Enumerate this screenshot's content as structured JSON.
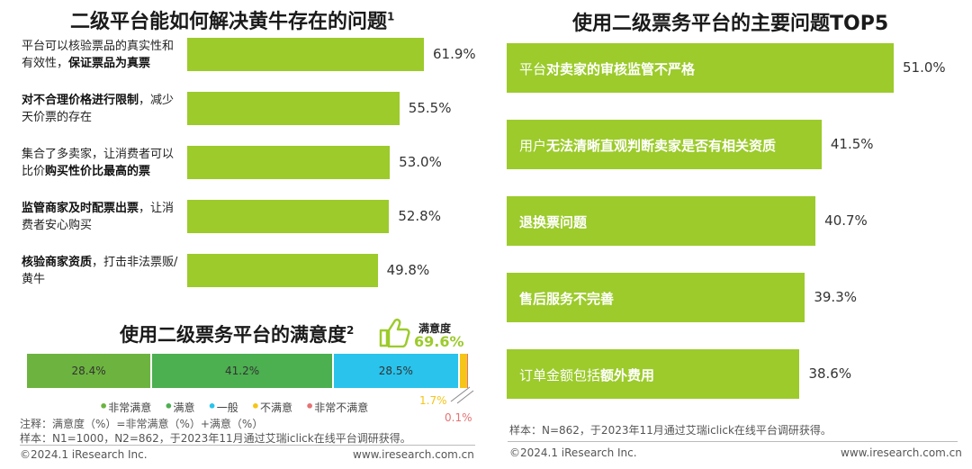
{
  "left_chart": {
    "title": "二级平台能如何解决黄牛存在的问题",
    "title_sup": "1",
    "items": [
      {
        "parts": [
          {
            "t": "平台可以核验票品的真实性和有效性，",
            "b": false
          },
          {
            "t": "保证票品为真票",
            "b": true
          }
        ],
        "value": 61.9,
        "label": "61.9%"
      },
      {
        "parts": [
          {
            "t": "对不合理价格进行限制",
            "b": true
          },
          {
            "t": "，减少天价票的存在",
            "b": false
          }
        ],
        "value": 55.5,
        "label": "55.5%"
      },
      {
        "parts": [
          {
            "t": "集合了多卖家，让消费者可以比价",
            "b": false
          },
          {
            "t": "购买性价比最高的票",
            "b": true
          }
        ],
        "value": 53.0,
        "label": "53.0%"
      },
      {
        "parts": [
          {
            "t": "监管商家及时配票出票",
            "b": true
          },
          {
            "t": "，让消费者安心购买",
            "b": false
          }
        ],
        "value": 52.8,
        "label": "52.8%"
      },
      {
        "parts": [
          {
            "t": "核验商家资质",
            "b": true
          },
          {
            "t": "，打击非法票贩/黄牛",
            "b": false
          }
        ],
        "value": 49.8,
        "label": "49.8%"
      }
    ]
  },
  "satisfaction": {
    "title": "使用二级票务平台的满意度",
    "title_sup": "2",
    "badge_label": "满意度",
    "badge_value": "69.6%",
    "segments": [
      {
        "name": "非常满意",
        "value": 28.4,
        "label": "28.4%",
        "color": "#6db33f"
      },
      {
        "name": "满意",
        "value": 41.2,
        "label": "41.2%",
        "color": "#4caf50"
      },
      {
        "name": "一般",
        "value": 28.5,
        "label": "28.5%",
        "color": "#29c3ec"
      },
      {
        "name": "不满意",
        "value": 1.7,
        "label": "1.7%",
        "color": "#f5c518"
      },
      {
        "name": "非常不满意",
        "value": 0.1,
        "label": "0.1%",
        "color": "#e57373"
      }
    ],
    "legend_bullet": "•"
  },
  "left_notes": {
    "line1": "注释：满意度（%）=非常满意（%）+满意（%）",
    "line2": "样本：N1=1000，N2=862，于2023年11月通过艾瑞iclick在线平台调研获得。"
  },
  "right_chart": {
    "title": "使用二级票务平台的主要问题TOP5",
    "items": [
      {
        "parts": [
          {
            "t": "平台",
            "b": false
          },
          {
            "t": "对卖家的审核监管不严格",
            "b": true
          }
        ],
        "value": 51.0,
        "label": "51.0%"
      },
      {
        "parts": [
          {
            "t": "用户",
            "b": false
          },
          {
            "t": "无法清晰直观判断卖家是否有相关资质",
            "b": true
          }
        ],
        "value": 41.5,
        "label": "41.5%"
      },
      {
        "parts": [
          {
            "t": "退换票问题",
            "b": true
          }
        ],
        "value": 40.7,
        "label": "40.7%"
      },
      {
        "parts": [
          {
            "t": "售后服务不完善",
            "b": true
          }
        ],
        "value": 39.3,
        "label": "39.3%"
      },
      {
        "parts": [
          {
            "t": "订单金额包括",
            "b": false
          },
          {
            "t": "额外费用",
            "b": true
          }
        ],
        "value": 38.6,
        "label": "38.6%"
      }
    ],
    "note": "样本：N=862，于2023年11月通过艾瑞iclick在线平台调研获得。"
  },
  "footer": {
    "left_copyright": "©2024.1 iResearch Inc.",
    "left_url": "www.iresearch.com.cn",
    "right_copyright": "©2024.1 iResearch Inc.",
    "right_url": "www.iresearch.com.cn"
  },
  "chart_data": [
    {
      "type": "bar",
      "orientation": "horizontal",
      "title": "二级平台能如何解决黄牛存在的问题",
      "categories": [
        "平台可以核验票品的真实性和有效性，保证票品为真票",
        "对不合理价格进行限制，减少天价票的存在",
        "集合了多卖家，让消费者可以比价购买性价比最高的票",
        "监管商家及时配票出票，让消费者安心购买",
        "核验商家资质，打击非法票贩/黄牛"
      ],
      "values": [
        61.9,
        55.5,
        53.0,
        52.8,
        49.8
      ],
      "unit": "%"
    },
    {
      "type": "bar",
      "orientation": "horizontal",
      "stacked": true,
      "title": "使用二级票务平台的满意度",
      "categories": [
        "非常满意",
        "满意",
        "一般",
        "不满意",
        "非常不满意"
      ],
      "values": [
        28.4,
        41.2,
        28.5,
        1.7,
        0.1
      ],
      "unit": "%",
      "legend": "bottom"
    },
    {
      "type": "bar",
      "orientation": "horizontal",
      "title": "使用二级票务平台的主要问题TOP5",
      "categories": [
        "平台对卖家的审核监管不严格",
        "用户无法清晰直观判断卖家是否有相关资质",
        "退换票问题",
        "售后服务不完善",
        "订单金额包括额外费用"
      ],
      "values": [
        51.0,
        41.5,
        40.7,
        39.3,
        38.6
      ],
      "unit": "%"
    }
  ]
}
